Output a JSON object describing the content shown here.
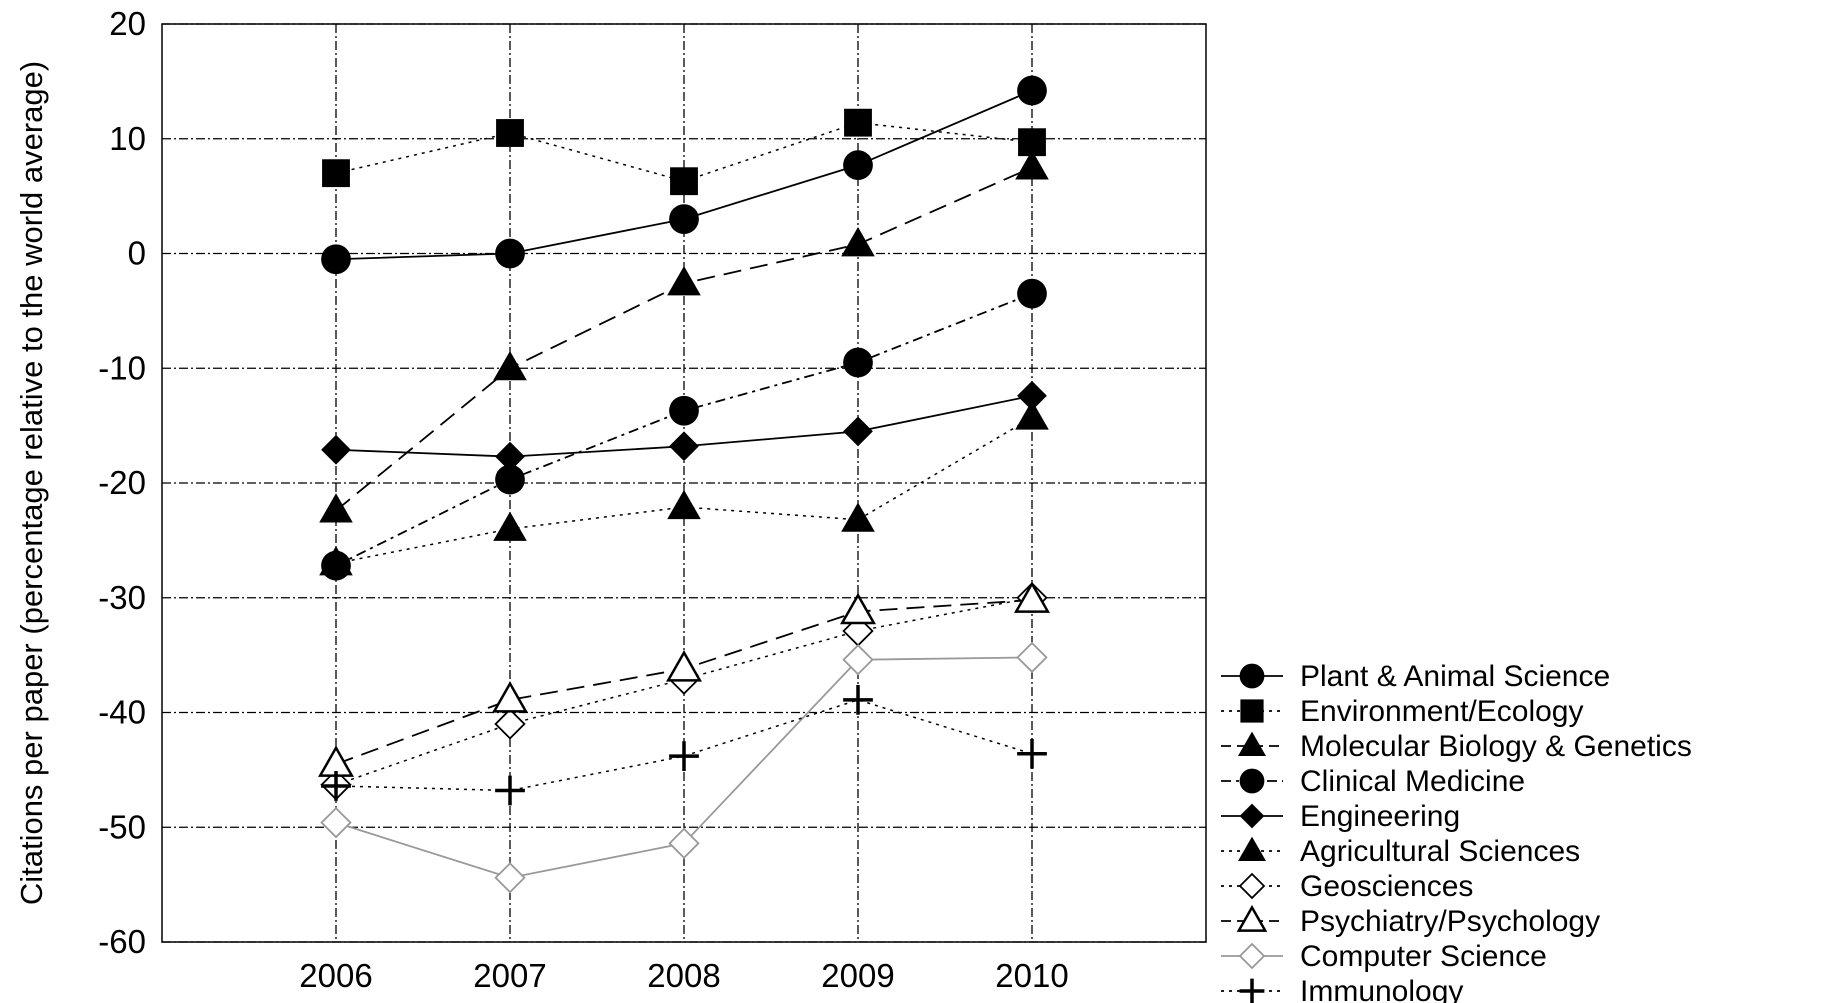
{
  "chart_data": {
    "type": "line",
    "title": "",
    "xlabel": "",
    "ylabel": "Citations per paper (percentage relative to the world average)",
    "x": [
      "2006",
      "2007",
      "2008",
      "2009",
      "2010"
    ],
    "xlim": [
      2005,
      2011
    ],
    "ylim": [
      -60,
      20
    ],
    "yticks": [
      "20",
      "10",
      "0",
      "-10",
      "-20",
      "-30",
      "-40",
      "-50",
      "-60"
    ],
    "grid": true,
    "legend_position": "bottom-right, outside plot",
    "series": [
      {
        "name": "Plant & Animal Science",
        "values": [
          -0.5,
          0,
          3,
          7.7,
          14.2
        ],
        "marker": "circle",
        "line": "solid",
        "color": "#000000"
      },
      {
        "name": "Environment/Ecology",
        "values": [
          7,
          10.5,
          6.3,
          11.4,
          9.7
        ],
        "marker": "square",
        "line": "dotted",
        "color": "#000000"
      },
      {
        "name": "Molecular Biology & Genetics",
        "values": [
          -22.4,
          -10,
          -2.6,
          0.8,
          7.5
        ],
        "marker": "triangle",
        "line": "dashed",
        "color": "#000000"
      },
      {
        "name": "Clinical Medicine",
        "values": [
          -27.2,
          -19.7,
          -13.7,
          -9.5,
          -3.5
        ],
        "marker": "circle",
        "line": "dashdot",
        "color": "#000000"
      },
      {
        "name": "Engineering",
        "values": [
          -17.1,
          -17.7,
          -16.8,
          -15.5,
          -12.4
        ],
        "marker": "diamond",
        "line": "solid",
        "color": "#000000"
      },
      {
        "name": "Agricultural Sciences",
        "values": [
          -27,
          -24,
          -22.1,
          -23.2,
          -14.3
        ],
        "marker": "triangle",
        "line": "dotted",
        "color": "#000000"
      },
      {
        "name": "Geosciences",
        "values": [
          -46.3,
          -41,
          -37.1,
          -32.9,
          -30
        ],
        "marker": "diamond-open",
        "line": "dotted",
        "color": "#000000"
      },
      {
        "name": "Psychiatry/Psychology",
        "values": [
          -44.5,
          -38.9,
          -36.2,
          -31.2,
          -30.2
        ],
        "marker": "triangle-open",
        "line": "dashed",
        "color": "#000000"
      },
      {
        "name": "Computer Science",
        "values": [
          -49.6,
          -54.4,
          -51.4,
          -35.4,
          -35.2
        ],
        "marker": "diamond-open",
        "line": "solid",
        "color": "#999999"
      },
      {
        "name": "Immunology",
        "values": [
          -46.4,
          -46.8,
          -43.8,
          -38.9,
          -43.6
        ],
        "marker": "plus",
        "line": "dotted",
        "color": "#000000"
      }
    ]
  }
}
